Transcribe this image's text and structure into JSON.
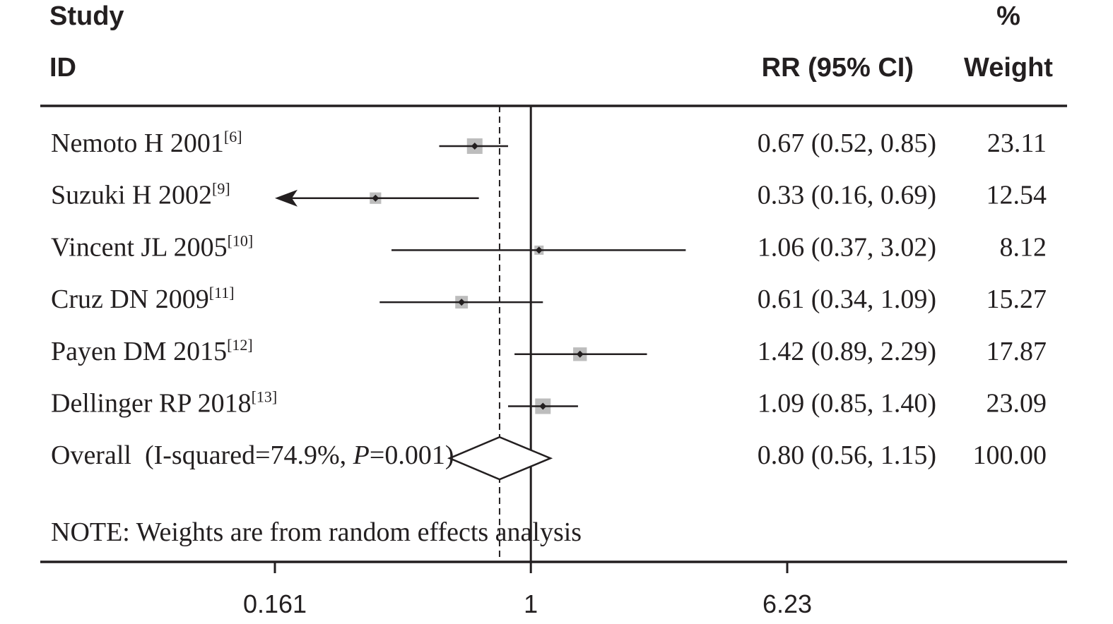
{
  "chart_data": {
    "type": "forest",
    "headers": {
      "study_line1": "Study",
      "study_line2": "ID",
      "effect": "RR (95% CI)",
      "weight_line1": "%",
      "weight_line2": "Weight"
    },
    "studies": [
      {
        "name": "Nemoto H 2001",
        "ref": "[6]",
        "rr": 0.67,
        "lo": 0.52,
        "hi": 0.85,
        "rr_text": "0.67 (0.52, 0.85)",
        "weight": 23.11,
        "weight_text": "23.11"
      },
      {
        "name": "Suzuki H 2002",
        "ref": "[9]",
        "rr": 0.33,
        "lo": 0.16,
        "hi": 0.69,
        "rr_text": "0.33 (0.16, 0.69)",
        "weight": 12.54,
        "weight_text": "12.54"
      },
      {
        "name": "Vincent JL 2005",
        "ref": "[10]",
        "rr": 1.06,
        "lo": 0.37,
        "hi": 3.02,
        "rr_text": "1.06 (0.37, 3.02)",
        "weight": 8.12,
        "weight_text": "8.12"
      },
      {
        "name": "Cruz DN 2009",
        "ref": "[11]",
        "rr": 0.61,
        "lo": 0.34,
        "hi": 1.09,
        "rr_text": "0.61 (0.34, 1.09)",
        "weight": 15.27,
        "weight_text": "15.27"
      },
      {
        "name": "Payen DM 2015",
        "ref": "[12]",
        "rr": 1.42,
        "lo": 0.89,
        "hi": 2.29,
        "rr_text": "1.42 (0.89, 2.29)",
        "weight": 17.87,
        "weight_text": "17.87"
      },
      {
        "name": "Dellinger RP 2018",
        "ref": "[13]",
        "rr": 1.09,
        "lo": 0.85,
        "hi": 1.4,
        "rr_text": "1.09 (0.85, 1.40)",
        "weight": 23.09,
        "weight_text": "23.09"
      }
    ],
    "overall": {
      "label_prefix": "Overall  (I-squared=74.9%, ",
      "label_p": "P",
      "label_suffix": "=0.001)",
      "rr": 0.8,
      "lo": 0.56,
      "hi": 1.15,
      "rr_text": "0.80 (0.56, 1.15)",
      "weight_text": "100.00"
    },
    "note": "NOTE: Weights are from random effects analysis",
    "x_axis": {
      "scale": "log",
      "xlim": [
        0.161,
        6.23
      ],
      "ticks": [
        0.161,
        1,
        6.23
      ],
      "tick_labels": [
        "0.161",
        "1",
        "6.23"
      ],
      "null_line": 1
    },
    "colors": {
      "ink": "#231f20",
      "box": "#bdbdbd"
    }
  }
}
